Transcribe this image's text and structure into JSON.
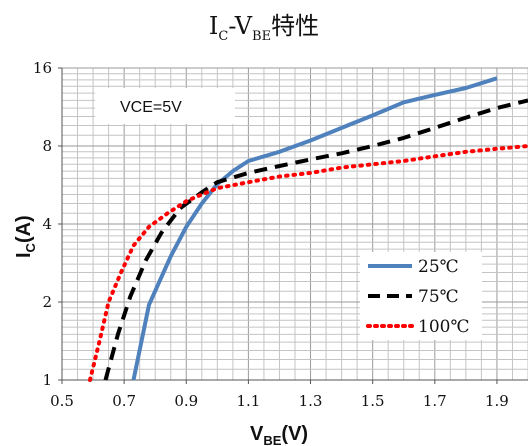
{
  "chart_data": {
    "type": "line",
    "title": {
      "main": "I",
      "sub1": "C",
      "dash": "-V",
      "sub2": "BE",
      "tail": "特性"
    },
    "xlabel": {
      "main": "V",
      "sub": "BE",
      "tail": "(V)"
    },
    "ylabel": {
      "main": "I",
      "sub": "C",
      "tail": "(A)"
    },
    "x_scale": "linear",
    "y_scale": "log2",
    "xlim": [
      0.5,
      2.0
    ],
    "ylim": [
      1,
      16
    ],
    "x_ticks": [
      "0.5",
      "0.7",
      "0.9",
      "1.1",
      "1.3",
      "1.5",
      "1.7",
      "1.9"
    ],
    "x_tick_values": [
      0.5,
      0.7,
      0.9,
      1.1,
      1.3,
      1.5,
      1.7,
      1.9
    ],
    "y_ticks": [
      "1",
      "2",
      "4",
      "8",
      "16"
    ],
    "y_tick_values": [
      1,
      2,
      4,
      8,
      16
    ],
    "grid": true,
    "annotation": "VCE=5V",
    "legend_position": "bottom-right",
    "series": [
      {
        "name": "25℃",
        "color": "#4f81bd",
        "style": "solid",
        "x": [
          0.73,
          0.78,
          0.85,
          0.9,
          0.95,
          1.0,
          1.05,
          1.1,
          1.2,
          1.3,
          1.4,
          1.5,
          1.6,
          1.7,
          1.8,
          1.9
        ],
        "y": [
          1.0,
          1.95,
          3.0,
          3.9,
          4.8,
          5.7,
          6.4,
          7.0,
          7.6,
          8.4,
          9.4,
          10.5,
          11.8,
          12.6,
          13.4,
          14.6
        ]
      },
      {
        "name": "75℃",
        "color": "#000000",
        "style": "dashed",
        "x": [
          0.64,
          0.68,
          0.72,
          0.77,
          0.82,
          0.88,
          0.95,
          1.0,
          1.1,
          1.2,
          1.3,
          1.4,
          1.5,
          1.6,
          1.7,
          1.8,
          1.9,
          2.0
        ],
        "y": [
          1.0,
          1.5,
          2.1,
          2.9,
          3.7,
          4.6,
          5.3,
          5.8,
          6.3,
          6.7,
          7.1,
          7.5,
          8.0,
          8.6,
          9.4,
          10.3,
          11.2,
          12.0
        ]
      },
      {
        "name": "100℃",
        "color": "#ff0000",
        "style": "dotted",
        "x": [
          0.59,
          0.62,
          0.65,
          0.69,
          0.73,
          0.78,
          0.84,
          0.9,
          0.95,
          1.0,
          1.1,
          1.2,
          1.3,
          1.4,
          1.5,
          1.6,
          1.7,
          1.8,
          1.9,
          2.0
        ],
        "y": [
          1.0,
          1.4,
          2.0,
          2.6,
          3.3,
          3.9,
          4.4,
          4.9,
          5.2,
          5.5,
          5.8,
          6.1,
          6.3,
          6.6,
          6.8,
          7.0,
          7.3,
          7.6,
          7.8,
          8.0
        ]
      }
    ]
  }
}
